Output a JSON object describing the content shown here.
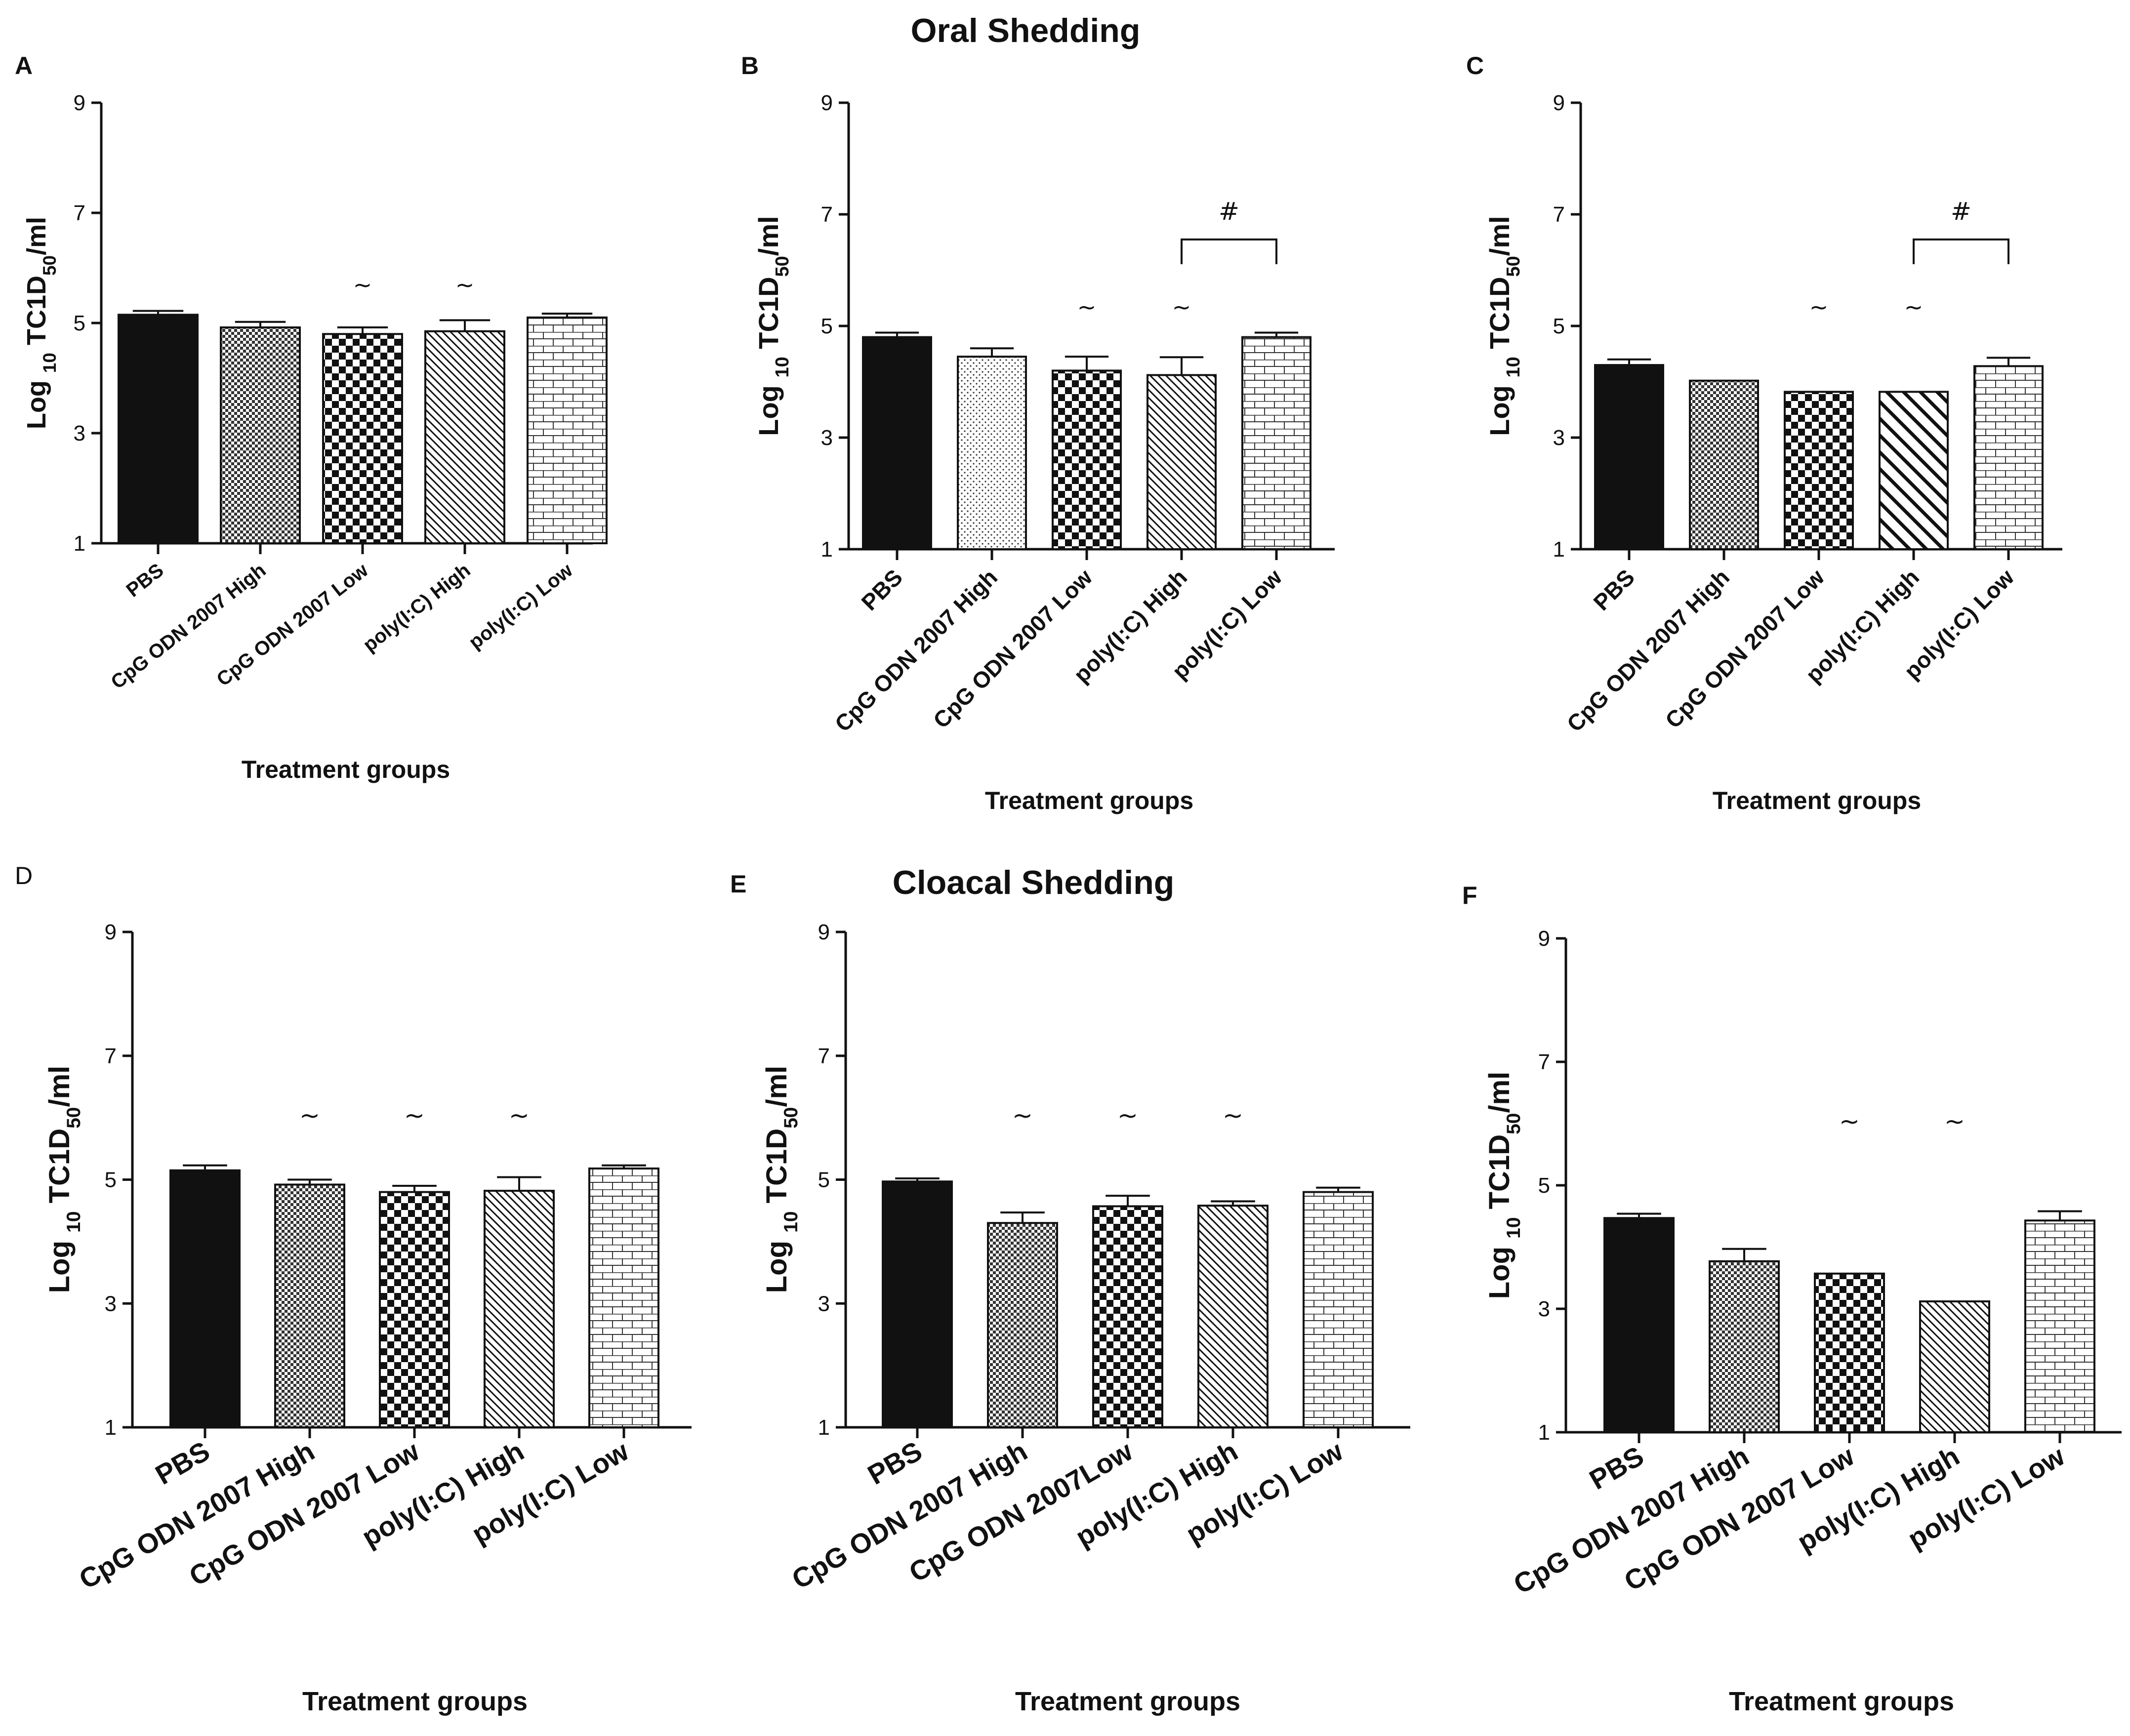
{
  "titles": {
    "oral": "Oral Shedding",
    "cloacal": "Cloacal Shedding"
  },
  "chart_data": [
    {
      "panel": "A",
      "type": "bar",
      "title": "Oral Shedding",
      "xlabel": "Treatment groups",
      "ylabel": "Log 10 TC1D50/ml",
      "ylim": [
        1,
        9
      ],
      "yticks": [
        "1",
        "3",
        "5",
        "7",
        "9"
      ],
      "categories": [
        "PBS",
        "CpG ODN 2007 High",
        "CpG ODN 2007 Low",
        "poly(I:C) High",
        "poly(I:C) Low"
      ],
      "values": [
        5.15,
        4.92,
        4.8,
        4.85,
        5.1
      ],
      "errors": [
        0.07,
        0.1,
        0.12,
        0.2,
        0.07
      ],
      "annotations": [
        "",
        "",
        "~",
        "~",
        ""
      ],
      "patterns": [
        "solid",
        "check-fine",
        "check",
        "diag",
        "brick"
      ],
      "brackets": []
    },
    {
      "panel": "B",
      "type": "bar",
      "xlabel": "Treatment groups",
      "ylabel": "Log 10 TC1D50/ml",
      "ylim": [
        1,
        9
      ],
      "yticks": [
        "1",
        "3",
        "5",
        "7",
        "9"
      ],
      "categories": [
        "PBS",
        "CpG ODN 2007 High",
        "CpG ODN 2007 Low",
        "poly(I:C) High",
        "poly(I:C) Low"
      ],
      "values": [
        4.8,
        4.45,
        4.2,
        4.12,
        4.8
      ],
      "errors": [
        0.08,
        0.15,
        0.25,
        0.32,
        0.08
      ],
      "annotations": [
        "",
        "",
        "~",
        "~",
        ""
      ],
      "patterns": [
        "solid",
        "dots",
        "check",
        "diag",
        "brick"
      ],
      "brackets": [
        {
          "from": 3,
          "to": 4,
          "y": 6.55,
          "label": "#"
        }
      ]
    },
    {
      "panel": "C",
      "type": "bar",
      "xlabel": "Treatment groups",
      "ylabel": "Log 10 TC1D50/ml",
      "ylim": [
        1,
        9
      ],
      "yticks": [
        "1",
        "3",
        "5",
        "7",
        "9"
      ],
      "categories": [
        "PBS",
        "CpG ODN 2007 High",
        "CpG ODN 2007 Low",
        "poly(I:C) High",
        "poly(I:C) Low"
      ],
      "values": [
        4.3,
        4.02,
        3.82,
        3.82,
        4.28
      ],
      "errors": [
        0.1,
        0.0,
        0.0,
        0.0,
        0.15
      ],
      "annotations": [
        "",
        "",
        "~",
        "~",
        ""
      ],
      "patterns": [
        "solid",
        "check-fine",
        "check",
        "diag-wide",
        "brick"
      ],
      "brackets": [
        {
          "from": 3,
          "to": 4,
          "y": 6.55,
          "label": "#"
        }
      ]
    },
    {
      "panel": "D",
      "type": "bar",
      "title": "Cloacal Shedding",
      "xlabel": "Treatment groups",
      "ylabel": "Log 10 TC1D50/ml",
      "ylim": [
        1,
        9
      ],
      "yticks": [
        "1",
        "3",
        "5",
        "7",
        "9"
      ],
      "categories": [
        "PBS",
        "CpG ODN 2007 High",
        "CpG ODN 2007 Low",
        "poly(I:C) High",
        "poly(I:C) Low"
      ],
      "values": [
        5.15,
        4.92,
        4.8,
        4.82,
        5.18
      ],
      "errors": [
        0.08,
        0.08,
        0.1,
        0.22,
        0.05
      ],
      "annotations": [
        "",
        "~",
        "~",
        "~",
        ""
      ],
      "patterns": [
        "solid",
        "check-fine",
        "check",
        "diag",
        "brick"
      ],
      "brackets": []
    },
    {
      "panel": "E",
      "type": "bar",
      "xlabel": "Treatment groups",
      "ylabel": "Log 10 TC1D50/ml",
      "ylim": [
        1,
        9
      ],
      "yticks": [
        "1",
        "3",
        "5",
        "7",
        "9"
      ],
      "categories": [
        "PBS",
        "CpG ODN 2007 High",
        "CpG ODN 2007Low",
        "poly(I:C) High",
        "poly(I:C) Low"
      ],
      "values": [
        4.97,
        4.3,
        4.57,
        4.58,
        4.8
      ],
      "errors": [
        0.05,
        0.17,
        0.17,
        0.07,
        0.07
      ],
      "annotations": [
        "",
        "~",
        "~",
        "~",
        ""
      ],
      "patterns": [
        "solid",
        "check-fine",
        "check",
        "diag",
        "brick"
      ],
      "brackets": []
    },
    {
      "panel": "F",
      "type": "bar",
      "xlabel": "Treatment groups",
      "ylabel": "Log 10 TC1D50/ml",
      "ylim": [
        1,
        9
      ],
      "yticks": [
        "1",
        "3",
        "5",
        "7",
        "9"
      ],
      "categories": [
        "PBS",
        "CpG ODN 2007 High",
        "CpG ODN 2007 Low",
        "poly(I:C) High",
        "poly(I:C) Low"
      ],
      "values": [
        4.47,
        3.77,
        3.57,
        3.12,
        4.43
      ],
      "errors": [
        0.07,
        0.2,
        0.0,
        0.0,
        0.15
      ],
      "annotations": [
        "",
        "",
        "~",
        "~",
        ""
      ],
      "patterns": [
        "solid",
        "check-fine",
        "check",
        "diag",
        "brick"
      ],
      "brackets": []
    }
  ],
  "colors": {
    "ink": "#111111",
    "background": "#ffffff"
  }
}
